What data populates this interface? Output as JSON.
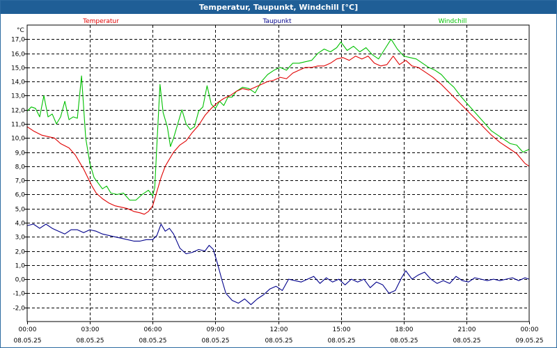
{
  "window": {
    "title": "Temperatur, Taupunkt, Windchill [°C]"
  },
  "chart_data": {
    "type": "line",
    "title": "Temperatur, Taupunkt, Windchill [°C]",
    "ylabel": "°C",
    "ylim": [
      -3.0,
      18.0
    ],
    "xlim": [
      0,
      24
    ],
    "grid": true,
    "y_ticks": [
      -2.0,
      -1.0,
      0.0,
      1.0,
      2.0,
      3.0,
      4.0,
      5.0,
      6.0,
      7.0,
      8.0,
      9.0,
      10.0,
      11.0,
      12.0,
      13.0,
      14.0,
      15.0,
      16.0,
      17.0
    ],
    "y_tick_labels": [
      "-2,0",
      "-1,0",
      "0,0",
      "1,0",
      "2,0",
      "3,0",
      "4,0",
      "5,0",
      "6,0",
      "7,0",
      "8,0",
      "9,0",
      "10,0",
      "11,0",
      "12,0",
      "13,0",
      "14,0",
      "15,0",
      "16,0",
      "17,0"
    ],
    "x_ticks": [
      {
        "h": 0,
        "time": "00:00",
        "date": "08.05.25"
      },
      {
        "h": 3,
        "time": "03:00",
        "date": "08.05.25"
      },
      {
        "h": 6,
        "time": "06:00",
        "date": "08.05.25"
      },
      {
        "h": 9,
        "time": "09:00",
        "date": "08.05.25"
      },
      {
        "h": 12,
        "time": "12:00",
        "date": "08.05.25"
      },
      {
        "h": 15,
        "time": "15:00",
        "date": "08.05.25"
      },
      {
        "h": 18,
        "time": "18:00",
        "date": "08.05.25"
      },
      {
        "h": 21,
        "time": "21:00",
        "date": "08.05.25"
      },
      {
        "h": 24,
        "time": "00:00",
        "date": "09.05.25"
      }
    ],
    "series": [
      {
        "name": "Temperatur",
        "color": "#e00000",
        "points": [
          [
            0,
            10.8
          ],
          [
            0.3,
            10.5
          ],
          [
            0.7,
            10.2
          ],
          [
            1.0,
            10.1
          ],
          [
            1.3,
            10.0
          ],
          [
            1.6,
            9.6
          ],
          [
            2.0,
            9.3
          ],
          [
            2.3,
            8.8
          ],
          [
            2.5,
            8.3
          ],
          [
            2.7,
            7.8
          ],
          [
            2.9,
            7.2
          ],
          [
            3.1,
            6.6
          ],
          [
            3.3,
            6.1
          ],
          [
            3.6,
            5.7
          ],
          [
            3.9,
            5.4
          ],
          [
            4.2,
            5.2
          ],
          [
            4.5,
            5.1
          ],
          [
            4.8,
            5.0
          ],
          [
            5.1,
            4.8
          ],
          [
            5.4,
            4.7
          ],
          [
            5.6,
            4.6
          ],
          [
            5.8,
            4.8
          ],
          [
            6.0,
            5.2
          ],
          [
            6.2,
            6.2
          ],
          [
            6.4,
            7.2
          ],
          [
            6.6,
            8.0
          ],
          [
            6.8,
            8.5
          ],
          [
            7.0,
            9.0
          ],
          [
            7.3,
            9.5
          ],
          [
            7.6,
            9.8
          ],
          [
            7.9,
            10.4
          ],
          [
            8.2,
            10.9
          ],
          [
            8.5,
            11.6
          ],
          [
            8.8,
            12.1
          ],
          [
            9.1,
            12.5
          ],
          [
            9.4,
            12.8
          ],
          [
            9.7,
            13.0
          ],
          [
            10.0,
            13.3
          ],
          [
            10.3,
            13.5
          ],
          [
            10.6,
            13.4
          ],
          [
            10.9,
            13.6
          ],
          [
            11.2,
            13.8
          ],
          [
            11.5,
            14.0
          ],
          [
            11.8,
            14.1
          ],
          [
            12.1,
            14.3
          ],
          [
            12.4,
            14.2
          ],
          [
            12.7,
            14.6
          ],
          [
            13.0,
            14.8
          ],
          [
            13.3,
            15.0
          ],
          [
            13.6,
            15.0
          ],
          [
            13.9,
            15.1
          ],
          [
            14.2,
            15.1
          ],
          [
            14.5,
            15.3
          ],
          [
            14.8,
            15.6
          ],
          [
            15.1,
            15.7
          ],
          [
            15.4,
            15.5
          ],
          [
            15.7,
            15.8
          ],
          [
            16.0,
            15.6
          ],
          [
            16.3,
            15.8
          ],
          [
            16.6,
            15.3
          ],
          [
            16.9,
            15.1
          ],
          [
            17.2,
            15.2
          ],
          [
            17.5,
            15.8
          ],
          [
            17.8,
            15.2
          ],
          [
            18.1,
            15.5
          ],
          [
            18.4,
            15.1
          ],
          [
            18.7,
            15.0
          ],
          [
            19.0,
            14.7
          ],
          [
            19.4,
            14.3
          ],
          [
            19.8,
            13.8
          ],
          [
            20.2,
            13.2
          ],
          [
            20.6,
            12.6
          ],
          [
            21.0,
            12.0
          ],
          [
            21.4,
            11.4
          ],
          [
            21.8,
            10.8
          ],
          [
            22.2,
            10.2
          ],
          [
            22.6,
            9.7
          ],
          [
            23.0,
            9.3
          ],
          [
            23.4,
            8.9
          ],
          [
            23.8,
            8.2
          ],
          [
            24.0,
            8.0
          ]
        ]
      },
      {
        "name": "Taupunkt",
        "color": "#00008b",
        "points": [
          [
            0,
            3.8
          ],
          [
            0.3,
            3.9
          ],
          [
            0.6,
            3.6
          ],
          [
            0.9,
            3.9
          ],
          [
            1.2,
            3.6
          ],
          [
            1.5,
            3.4
          ],
          [
            1.8,
            3.2
          ],
          [
            2.1,
            3.5
          ],
          [
            2.4,
            3.5
          ],
          [
            2.7,
            3.3
          ],
          [
            3.0,
            3.5
          ],
          [
            3.3,
            3.4
          ],
          [
            3.6,
            3.2
          ],
          [
            3.9,
            3.1
          ],
          [
            4.2,
            3.0
          ],
          [
            4.5,
            2.9
          ],
          [
            4.8,
            2.8
          ],
          [
            5.1,
            2.7
          ],
          [
            5.4,
            2.7
          ],
          [
            5.7,
            2.8
          ],
          [
            6.0,
            2.8
          ],
          [
            6.2,
            3.1
          ],
          [
            6.4,
            3.9
          ],
          [
            6.6,
            3.4
          ],
          [
            6.8,
            3.6
          ],
          [
            7.0,
            3.2
          ],
          [
            7.3,
            2.2
          ],
          [
            7.6,
            1.8
          ],
          [
            7.9,
            1.9
          ],
          [
            8.2,
            2.1
          ],
          [
            8.5,
            2.0
          ],
          [
            8.7,
            2.4
          ],
          [
            8.9,
            2.1
          ],
          [
            9.1,
            1.1
          ],
          [
            9.3,
            0.0
          ],
          [
            9.5,
            -1.0
          ],
          [
            9.8,
            -1.5
          ],
          [
            10.1,
            -1.7
          ],
          [
            10.4,
            -1.4
          ],
          [
            10.7,
            -1.8
          ],
          [
            11.0,
            -1.4
          ],
          [
            11.3,
            -1.1
          ],
          [
            11.6,
            -0.7
          ],
          [
            11.9,
            -0.5
          ],
          [
            12.2,
            -0.8
          ],
          [
            12.5,
            0.0
          ],
          [
            12.8,
            -0.1
          ],
          [
            13.1,
            -0.2
          ],
          [
            13.4,
            0.0
          ],
          [
            13.7,
            0.2
          ],
          [
            14.0,
            -0.3
          ],
          [
            14.3,
            0.1
          ],
          [
            14.6,
            -0.2
          ],
          [
            14.9,
            0.0
          ],
          [
            15.2,
            -0.4
          ],
          [
            15.5,
            0.0
          ],
          [
            15.8,
            -0.2
          ],
          [
            16.1,
            0.0
          ],
          [
            16.4,
            -0.6
          ],
          [
            16.7,
            -0.2
          ],
          [
            17.0,
            -0.4
          ],
          [
            17.3,
            -1.0
          ],
          [
            17.6,
            -0.8
          ],
          [
            17.9,
            0.1
          ],
          [
            18.1,
            0.6
          ],
          [
            18.4,
            0.0
          ],
          [
            18.7,
            0.3
          ],
          [
            19.0,
            0.5
          ],
          [
            19.3,
            0.0
          ],
          [
            19.6,
            -0.3
          ],
          [
            19.9,
            -0.1
          ],
          [
            20.2,
            -0.3
          ],
          [
            20.5,
            0.2
          ],
          [
            20.8,
            -0.1
          ],
          [
            21.1,
            -0.2
          ],
          [
            21.4,
            0.1
          ],
          [
            21.7,
            0.0
          ],
          [
            22.0,
            -0.1
          ],
          [
            22.3,
            0.0
          ],
          [
            22.6,
            -0.1
          ],
          [
            22.9,
            0.0
          ],
          [
            23.2,
            0.1
          ],
          [
            23.5,
            -0.1
          ],
          [
            23.8,
            0.1
          ],
          [
            24.0,
            0.0
          ]
        ]
      },
      {
        "name": "Windchill",
        "color": "#00c000",
        "points": [
          [
            0,
            11.9
          ],
          [
            0.2,
            12.2
          ],
          [
            0.4,
            12.1
          ],
          [
            0.6,
            11.5
          ],
          [
            0.8,
            13.0
          ],
          [
            1.0,
            11.5
          ],
          [
            1.2,
            11.7
          ],
          [
            1.4,
            11.0
          ],
          [
            1.6,
            11.5
          ],
          [
            1.8,
            12.6
          ],
          [
            2.0,
            11.3
          ],
          [
            2.2,
            11.5
          ],
          [
            2.4,
            11.4
          ],
          [
            2.6,
            14.4
          ],
          [
            2.8,
            10.0
          ],
          [
            3.0,
            8.2
          ],
          [
            3.2,
            7.2
          ],
          [
            3.4,
            6.8
          ],
          [
            3.6,
            6.4
          ],
          [
            3.8,
            6.6
          ],
          [
            4.0,
            6.1
          ],
          [
            4.3,
            6.0
          ],
          [
            4.6,
            6.1
          ],
          [
            4.9,
            5.6
          ],
          [
            5.2,
            5.6
          ],
          [
            5.5,
            6.0
          ],
          [
            5.8,
            6.3
          ],
          [
            6.0,
            5.9
          ],
          [
            6.1,
            6.5
          ],
          [
            6.2,
            9.5
          ],
          [
            6.35,
            13.8
          ],
          [
            6.5,
            11.8
          ],
          [
            6.7,
            10.8
          ],
          [
            6.85,
            9.4
          ],
          [
            7.0,
            10.0
          ],
          [
            7.2,
            11.0
          ],
          [
            7.4,
            12.0
          ],
          [
            7.6,
            11.0
          ],
          [
            7.8,
            10.6
          ],
          [
            8.0,
            10.8
          ],
          [
            8.2,
            11.9
          ],
          [
            8.4,
            12.2
          ],
          [
            8.6,
            13.7
          ],
          [
            8.8,
            12.4
          ],
          [
            9.0,
            12.1
          ],
          [
            9.2,
            12.6
          ],
          [
            9.4,
            12.3
          ],
          [
            9.6,
            12.9
          ],
          [
            9.8,
            12.9
          ],
          [
            10.0,
            13.3
          ],
          [
            10.3,
            13.6
          ],
          [
            10.6,
            13.5
          ],
          [
            10.9,
            13.2
          ],
          [
            11.2,
            14.0
          ],
          [
            11.5,
            14.5
          ],
          [
            11.8,
            14.8
          ],
          [
            12.1,
            15.0
          ],
          [
            12.4,
            14.8
          ],
          [
            12.7,
            15.3
          ],
          [
            13.0,
            15.3
          ],
          [
            13.3,
            15.4
          ],
          [
            13.6,
            15.5
          ],
          [
            13.9,
            16.0
          ],
          [
            14.2,
            16.3
          ],
          [
            14.5,
            16.1
          ],
          [
            14.8,
            16.4
          ],
          [
            15.0,
            16.8
          ],
          [
            15.3,
            16.2
          ],
          [
            15.6,
            16.5
          ],
          [
            15.9,
            16.1
          ],
          [
            16.2,
            16.4
          ],
          [
            16.5,
            15.9
          ],
          [
            16.8,
            15.6
          ],
          [
            17.1,
            16.3
          ],
          [
            17.4,
            17.0
          ],
          [
            17.7,
            16.3
          ],
          [
            18.0,
            15.8
          ],
          [
            18.3,
            15.7
          ],
          [
            18.6,
            15.6
          ],
          [
            18.9,
            15.3
          ],
          [
            19.2,
            15.0
          ],
          [
            19.5,
            14.8
          ],
          [
            19.8,
            14.5
          ],
          [
            20.1,
            14.0
          ],
          [
            20.4,
            13.6
          ],
          [
            20.7,
            13.0
          ],
          [
            21.0,
            12.5
          ],
          [
            21.3,
            12.0
          ],
          [
            21.6,
            11.5
          ],
          [
            21.9,
            11.0
          ],
          [
            22.2,
            10.5
          ],
          [
            22.5,
            10.2
          ],
          [
            22.8,
            9.9
          ],
          [
            23.1,
            9.6
          ],
          [
            23.4,
            9.5
          ],
          [
            23.7,
            9.0
          ],
          [
            24.0,
            9.2
          ]
        ]
      }
    ]
  }
}
